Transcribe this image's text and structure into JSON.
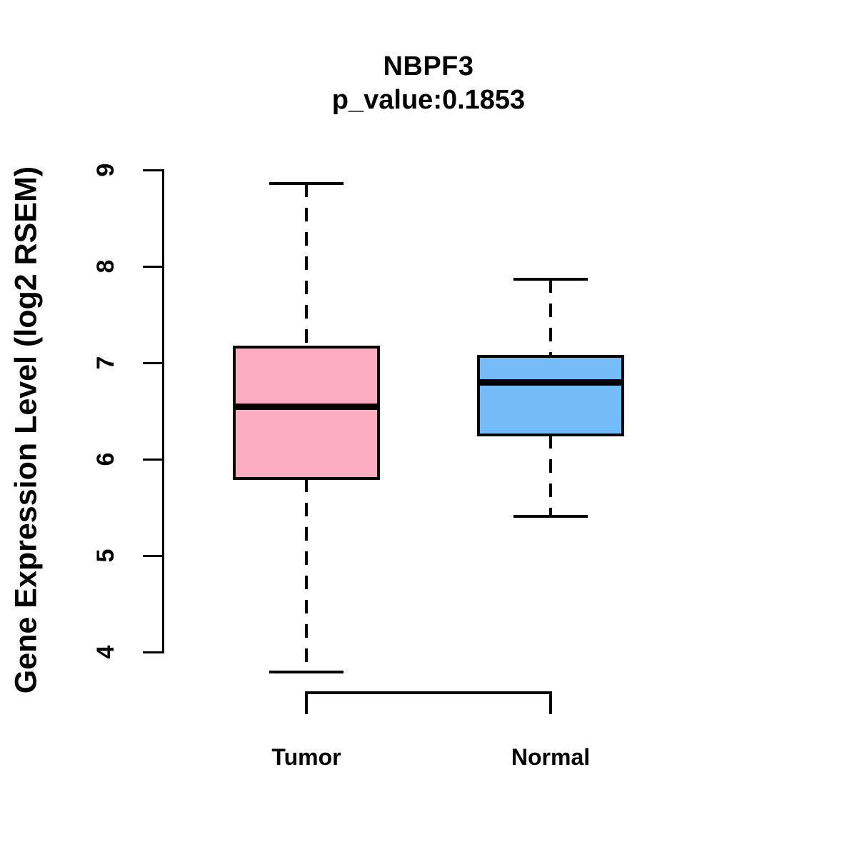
{
  "chart_data": {
    "type": "boxplot",
    "title": "NBPF3",
    "subtitle": "p_value:0.1853",
    "ylabel": "Gene Expression Level (log2 RSEM)",
    "xlabel": "",
    "ylim": [
      4,
      9
    ],
    "yticks": [
      4,
      5,
      6,
      7,
      8,
      9
    ],
    "grid": false,
    "legend": "none",
    "stroke_color": "#000000",
    "background_color": "#ffffff",
    "categories": [
      "Tumor",
      "Normal"
    ],
    "groups": [
      {
        "label": "Tumor",
        "fill_color": "#FCADC1",
        "whisker_low": 3.79,
        "q1": 5.8,
        "median": 6.55,
        "q3": 7.16,
        "whisker_high": 8.86
      },
      {
        "label": "Normal",
        "fill_color": "#74BCF7",
        "whisker_low": 5.41,
        "q1": 6.25,
        "median": 6.8,
        "q3": 7.07,
        "whisker_high": 7.87
      }
    ]
  }
}
